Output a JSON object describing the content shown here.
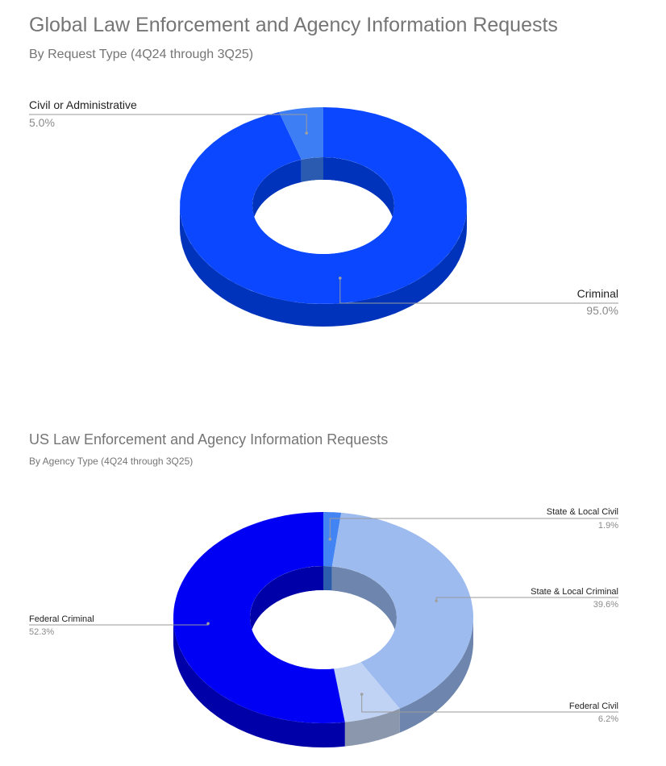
{
  "chart_data": [
    {
      "type": "pie",
      "title": "Global Law Enforcement and Agency Information Requests",
      "subtitle": "By Request Type (4Q24 through 3Q25)",
      "slices": [
        {
          "label": "Criminal",
          "value": 95.0,
          "value_label": "95.0%",
          "color": "#0a47ff",
          "side_color": "#0033bb"
        },
        {
          "label": "Civil or Administrative",
          "value": 5.0,
          "value_label": "5.0%",
          "color": "#3d7ef5",
          "side_color": "#2b5bb0"
        }
      ]
    },
    {
      "type": "pie",
      "title": "US Law Enforcement and Agency Information Requests",
      "subtitle": "By Agency Type (4Q24 through 3Q25)",
      "slices": [
        {
          "label": "State & Local Civil",
          "value": 1.9,
          "value_label": "1.9%",
          "color": "#4284f4",
          "side_color": "#2e5cad"
        },
        {
          "label": "State & Local Criminal",
          "value": 39.6,
          "value_label": "39.6%",
          "color": "#9dbbef",
          "side_color": "#6e86ad"
        },
        {
          "label": "Federal Civil",
          "value": 6.2,
          "value_label": "6.2%",
          "color": "#c0d3f4",
          "side_color": "#8a97ad"
        },
        {
          "label": "Federal Criminal",
          "value": 52.3,
          "value_label": "52.3%",
          "color": "#0000f5",
          "side_color": "#0000a8"
        }
      ]
    }
  ]
}
